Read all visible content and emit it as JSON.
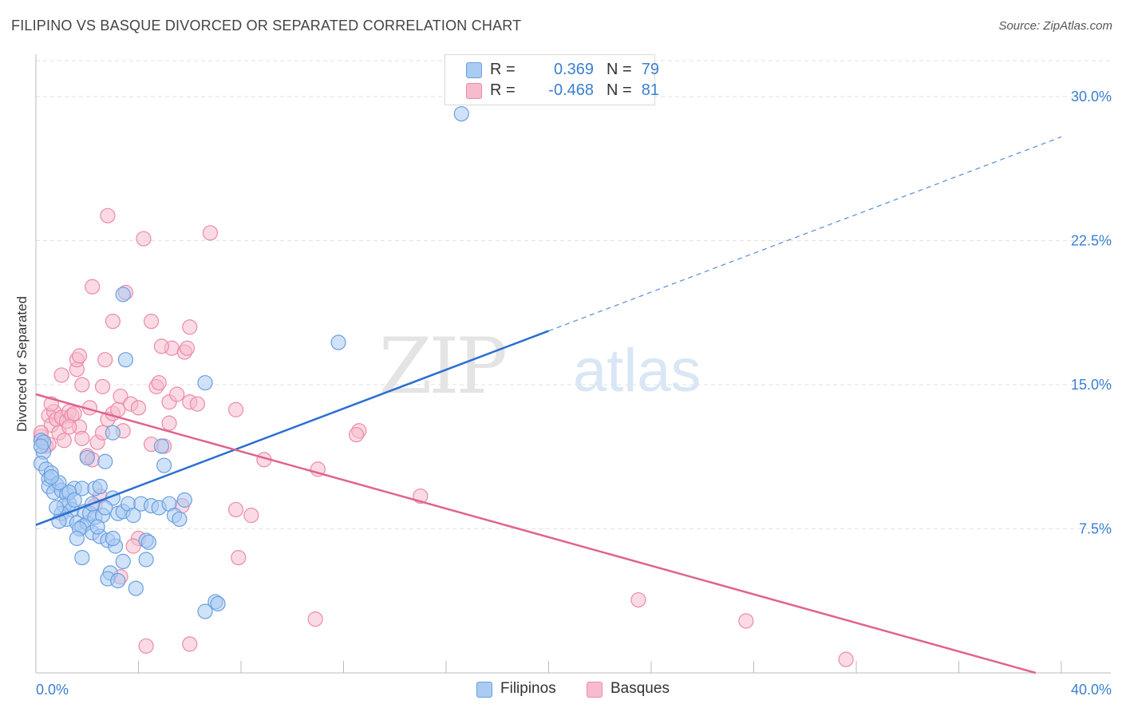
{
  "header": {
    "title": "FILIPINO VS BASQUE DIVORCED OR SEPARATED CORRELATION CHART",
    "source": "Source: ZipAtlas.com"
  },
  "legend": {
    "rows": [
      {
        "r_label": "R =",
        "r_value": "0.369",
        "n_label": "N =",
        "n_value": "79"
      },
      {
        "r_label": "R =",
        "r_value": "-0.468",
        "n_label": "N =",
        "n_value": "81"
      }
    ]
  },
  "bottom_legend": {
    "filipinos": "Filipinos",
    "basques": "Basques"
  },
  "watermark": {
    "zip": "ZIP",
    "atlas": "atlas"
  },
  "colors": {
    "filipinos_fill": "#aacbf2",
    "filipinos_stroke": "#6a9fe0",
    "filipinos_line": "#2a6fd0",
    "basques_fill": "#f6bccd",
    "basques_stroke": "#ec8aa8",
    "basques_line": "#e0628e",
    "tick_label": "#3a7fd0",
    "grid": "#e2e2e2"
  },
  "chart_data": {
    "type": "scatter",
    "title": "FILIPINO VS BASQUE DIVORCED OR SEPARATED CORRELATION CHART",
    "xlabel": "",
    "ylabel": "Divorced or Separated",
    "xlim": [
      0,
      40
    ],
    "ylim": [
      0,
      32.2
    ],
    "x_tick_labels": [
      {
        "value": 0,
        "label": "0.0%"
      },
      {
        "value": 40,
        "label": "40.0%"
      }
    ],
    "y_tick_labels": [
      {
        "value": 7.5,
        "label": "7.5%"
      },
      {
        "value": 15,
        "label": "15.0%"
      },
      {
        "value": 22.5,
        "label": "22.5%"
      },
      {
        "value": 30,
        "label": "30.0%"
      }
    ],
    "grid": true,
    "legend_position": "top-center",
    "series": [
      {
        "name": "Filipinos",
        "r": 0.369,
        "n": 79,
        "trend": {
          "x0": 0,
          "y0": 7.7,
          "x1": 20,
          "y1": 17.8,
          "dashed_to_x": 40,
          "dashed_to_y": 27.9
        },
        "points": [
          [
            0.2,
            12.1
          ],
          [
            0.3,
            11.5
          ],
          [
            0.2,
            10.9
          ],
          [
            0.4,
            10.6
          ],
          [
            0.5,
            10.1
          ],
          [
            0.6,
            10.4
          ],
          [
            0.8,
            9.8
          ],
          [
            0.5,
            9.7
          ],
          [
            0.7,
            9.4
          ],
          [
            1.0,
            9.5
          ],
          [
            0.9,
            9.9
          ],
          [
            1.2,
            9.3
          ],
          [
            1.3,
            8.8
          ],
          [
            1.1,
            8.7
          ],
          [
            1.4,
            8.5
          ],
          [
            1.0,
            8.3
          ],
          [
            1.2,
            8.0
          ],
          [
            0.9,
            7.9
          ],
          [
            1.6,
            7.8
          ],
          [
            1.8,
            7.6
          ],
          [
            2.0,
            7.8
          ],
          [
            1.7,
            7.5
          ],
          [
            2.2,
            7.3
          ],
          [
            2.5,
            7.1
          ],
          [
            1.6,
            7.0
          ],
          [
            2.8,
            6.9
          ],
          [
            3.1,
            6.6
          ],
          [
            1.8,
            6.0
          ],
          [
            3.4,
            5.8
          ],
          [
            2.9,
            5.2
          ],
          [
            2.8,
            4.9
          ],
          [
            3.2,
            4.8
          ],
          [
            3.9,
            4.4
          ],
          [
            1.5,
            9.6
          ],
          [
            1.8,
            9.6
          ],
          [
            2.3,
            9.6
          ],
          [
            2.5,
            9.7
          ],
          [
            1.9,
            8.4
          ],
          [
            2.1,
            8.3
          ],
          [
            2.3,
            8.1
          ],
          [
            2.6,
            8.2
          ],
          [
            2.4,
            7.6
          ],
          [
            3.2,
            8.3
          ],
          [
            3.4,
            8.4
          ],
          [
            3.6,
            8.8
          ],
          [
            3.8,
            8.2
          ],
          [
            4.1,
            8.8
          ],
          [
            4.5,
            8.7
          ],
          [
            4.8,
            8.6
          ],
          [
            5.2,
            8.8
          ],
          [
            5.4,
            8.2
          ],
          [
            5.6,
            8.0
          ],
          [
            5.8,
            9.0
          ],
          [
            3.0,
            9.1
          ],
          [
            2.7,
            8.6
          ],
          [
            4.3,
            6.9
          ],
          [
            4.4,
            6.8
          ],
          [
            4.3,
            5.9
          ],
          [
            2.0,
            11.2
          ],
          [
            2.7,
            11.0
          ],
          [
            3.0,
            12.5
          ],
          [
            4.9,
            11.8
          ],
          [
            5.0,
            10.8
          ],
          [
            6.6,
            15.1
          ],
          [
            3.5,
            16.3
          ],
          [
            3.4,
            19.7
          ],
          [
            11.8,
            17.2
          ],
          [
            7.0,
            3.7
          ],
          [
            7.1,
            3.6
          ],
          [
            6.6,
            3.2
          ],
          [
            0.3,
            12.0
          ],
          [
            0.2,
            11.8
          ],
          [
            0.6,
            10.2
          ],
          [
            1.3,
            9.4
          ],
          [
            0.8,
            8.6
          ],
          [
            1.5,
            9.0
          ],
          [
            2.2,
            8.8
          ],
          [
            3.0,
            7.0
          ],
          [
            16.6,
            29.1
          ]
        ]
      },
      {
        "name": "Basques",
        "r": -0.468,
        "n": 81,
        "trend": {
          "x0": 0,
          "y0": 14.5,
          "x1": 39,
          "y1": 0.0
        },
        "points": [
          [
            0.2,
            12.3
          ],
          [
            0.3,
            12.0
          ],
          [
            0.4,
            11.8
          ],
          [
            0.5,
            13.4
          ],
          [
            0.6,
            12.9
          ],
          [
            0.7,
            13.6
          ],
          [
            0.8,
            13.2
          ],
          [
            0.9,
            12.5
          ],
          [
            1.0,
            13.3
          ],
          [
            1.1,
            12.1
          ],
          [
            1.2,
            13.1
          ],
          [
            1.3,
            13.6
          ],
          [
            1.4,
            13.4
          ],
          [
            1.5,
            13.5
          ],
          [
            1.7,
            12.8
          ],
          [
            1.8,
            12.2
          ],
          [
            2.0,
            11.3
          ],
          [
            2.2,
            11.1
          ],
          [
            2.4,
            12.0
          ],
          [
            2.6,
            12.5
          ],
          [
            2.8,
            13.2
          ],
          [
            3.0,
            13.5
          ],
          [
            3.2,
            13.7
          ],
          [
            3.4,
            12.6
          ],
          [
            1.6,
            15.8
          ],
          [
            1.6,
            16.3
          ],
          [
            1.7,
            16.5
          ],
          [
            1.0,
            15.5
          ],
          [
            1.8,
            15.0
          ],
          [
            2.6,
            14.9
          ],
          [
            3.3,
            14.4
          ],
          [
            3.7,
            14.0
          ],
          [
            4.0,
            13.8
          ],
          [
            4.5,
            11.9
          ],
          [
            5.0,
            11.8
          ],
          [
            5.2,
            13.0
          ],
          [
            4.7,
            14.9
          ],
          [
            4.8,
            15.1
          ],
          [
            5.2,
            14.1
          ],
          [
            5.5,
            14.5
          ],
          [
            6.0,
            14.1
          ],
          [
            6.3,
            14.0
          ],
          [
            5.3,
            16.9
          ],
          [
            5.8,
            16.7
          ],
          [
            5.9,
            16.9
          ],
          [
            4.9,
            17.0
          ],
          [
            2.7,
            16.3
          ],
          [
            3.0,
            18.3
          ],
          [
            4.5,
            18.3
          ],
          [
            6.0,
            18.0
          ],
          [
            3.5,
            19.8
          ],
          [
            2.2,
            20.1
          ],
          [
            4.2,
            22.6
          ],
          [
            6.8,
            22.9
          ],
          [
            2.8,
            23.8
          ],
          [
            7.8,
            13.7
          ],
          [
            8.9,
            11.1
          ],
          [
            11.0,
            10.6
          ],
          [
            12.6,
            12.6
          ],
          [
            12.5,
            12.4
          ],
          [
            15.0,
            9.2
          ],
          [
            7.8,
            8.5
          ],
          [
            8.4,
            8.2
          ],
          [
            7.9,
            6.0
          ],
          [
            4.0,
            7.0
          ],
          [
            3.8,
            6.6
          ],
          [
            3.3,
            5.0
          ],
          [
            2.3,
            8.7
          ],
          [
            2.5,
            9.2
          ],
          [
            4.3,
            1.4
          ],
          [
            6.0,
            1.5
          ],
          [
            10.9,
            2.8
          ],
          [
            23.5,
            3.8
          ],
          [
            27.7,
            2.7
          ],
          [
            31.6,
            0.7
          ],
          [
            0.2,
            12.5
          ],
          [
            0.5,
            11.9
          ],
          [
            1.3,
            12.8
          ],
          [
            2.1,
            13.8
          ],
          [
            5.7,
            8.7
          ],
          [
            0.6,
            14.0
          ]
        ]
      }
    ]
  }
}
